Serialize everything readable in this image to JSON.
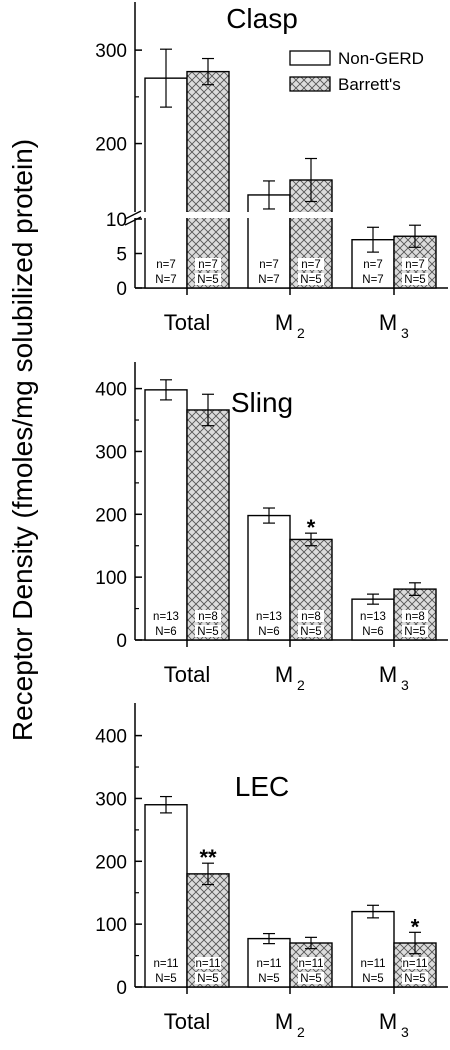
{
  "ylabel": "Receptor Density (fmoles/mg solubilized protein)",
  "legend": [
    {
      "label": "Non-GERD",
      "fill": "#ffffff"
    },
    {
      "label": "Barrett's",
      "fill": "hatch"
    }
  ],
  "chart_data": [
    {
      "type": "bar",
      "title": "Clasp",
      "categories": [
        "Total",
        "M2",
        "M3"
      ],
      "category_labels": [
        {
          "main": "Total",
          "sub": ""
        },
        {
          "main": "M",
          "sub": "2"
        },
        {
          "main": "M",
          "sub": "3"
        }
      ],
      "axis_break": {
        "low_range": [
          0,
          10
        ],
        "high_range": [
          100,
          330
        ]
      },
      "yticks": [
        0,
        5,
        10,
        200,
        300
      ],
      "series": [
        {
          "name": "Non-GERD",
          "values": [
            270,
            145,
            7
          ],
          "errors": [
            31,
            15,
            1.8
          ],
          "n_labels": [
            [
              "n=7",
              "N=7"
            ],
            [
              "n=7",
              "N=7"
            ],
            [
              "n=7",
              "N=7"
            ]
          ]
        },
        {
          "name": "Barrett's",
          "values": [
            277,
            161,
            7.5
          ],
          "errors": [
            14,
            23,
            1.6
          ],
          "n_labels": [
            [
              "n=7",
              "N=5"
            ],
            [
              "n=7",
              "N=5"
            ],
            [
              "n=7",
              "N=5"
            ]
          ]
        }
      ],
      "significance": [
        "",
        "",
        ""
      ]
    },
    {
      "type": "bar",
      "title": "Sling",
      "categories": [
        "Total",
        "M2",
        "M3"
      ],
      "category_labels": [
        {
          "main": "Total",
          "sub": ""
        },
        {
          "main": "M",
          "sub": "2"
        },
        {
          "main": "M",
          "sub": "3"
        }
      ],
      "ylim": [
        0,
        450
      ],
      "yticks": [
        0,
        100,
        200,
        300,
        400
      ],
      "series": [
        {
          "name": "Non-GERD",
          "values": [
            398,
            198,
            65
          ],
          "errors": [
            16,
            12,
            8
          ],
          "n_labels": [
            [
              "n=13",
              "N=6"
            ],
            [
              "n=13",
              "N=6"
            ],
            [
              "n=13",
              "N=6"
            ]
          ]
        },
        {
          "name": "Barrett's",
          "values": [
            366,
            160,
            81
          ],
          "errors": [
            25,
            10,
            10
          ],
          "n_labels": [
            [
              "n=8",
              "N=5"
            ],
            [
              "n=8",
              "N=5"
            ],
            [
              "n=8",
              "N=5"
            ]
          ]
        }
      ],
      "significance": [
        "",
        "*",
        ""
      ]
    },
    {
      "type": "bar",
      "title": "LEC",
      "categories": [
        "Total",
        "M2",
        "M3"
      ],
      "category_labels": [
        {
          "main": "Total",
          "sub": ""
        },
        {
          "main": "M",
          "sub": "2"
        },
        {
          "main": "M",
          "sub": "3"
        }
      ],
      "ylim": [
        0,
        450
      ],
      "yticks": [
        0,
        100,
        200,
        300,
        400
      ],
      "series": [
        {
          "name": "Non-GERD",
          "values": [
            290,
            77,
            120
          ],
          "errors": [
            13,
            8,
            10
          ],
          "n_labels": [
            [
              "n=11",
              "N=5"
            ],
            [
              "n=11",
              "N=5"
            ],
            [
              "n=11",
              "N=5"
            ]
          ]
        },
        {
          "name": "Barrett's",
          "values": [
            180,
            70,
            70
          ],
          "errors": [
            17,
            9,
            17
          ],
          "n_labels": [
            [
              "n=11",
              "N=5"
            ],
            [
              "n=11",
              "N=5"
            ],
            [
              "n=11",
              "N=5"
            ]
          ]
        }
      ],
      "significance": [
        "**",
        "",
        "*"
      ]
    }
  ]
}
